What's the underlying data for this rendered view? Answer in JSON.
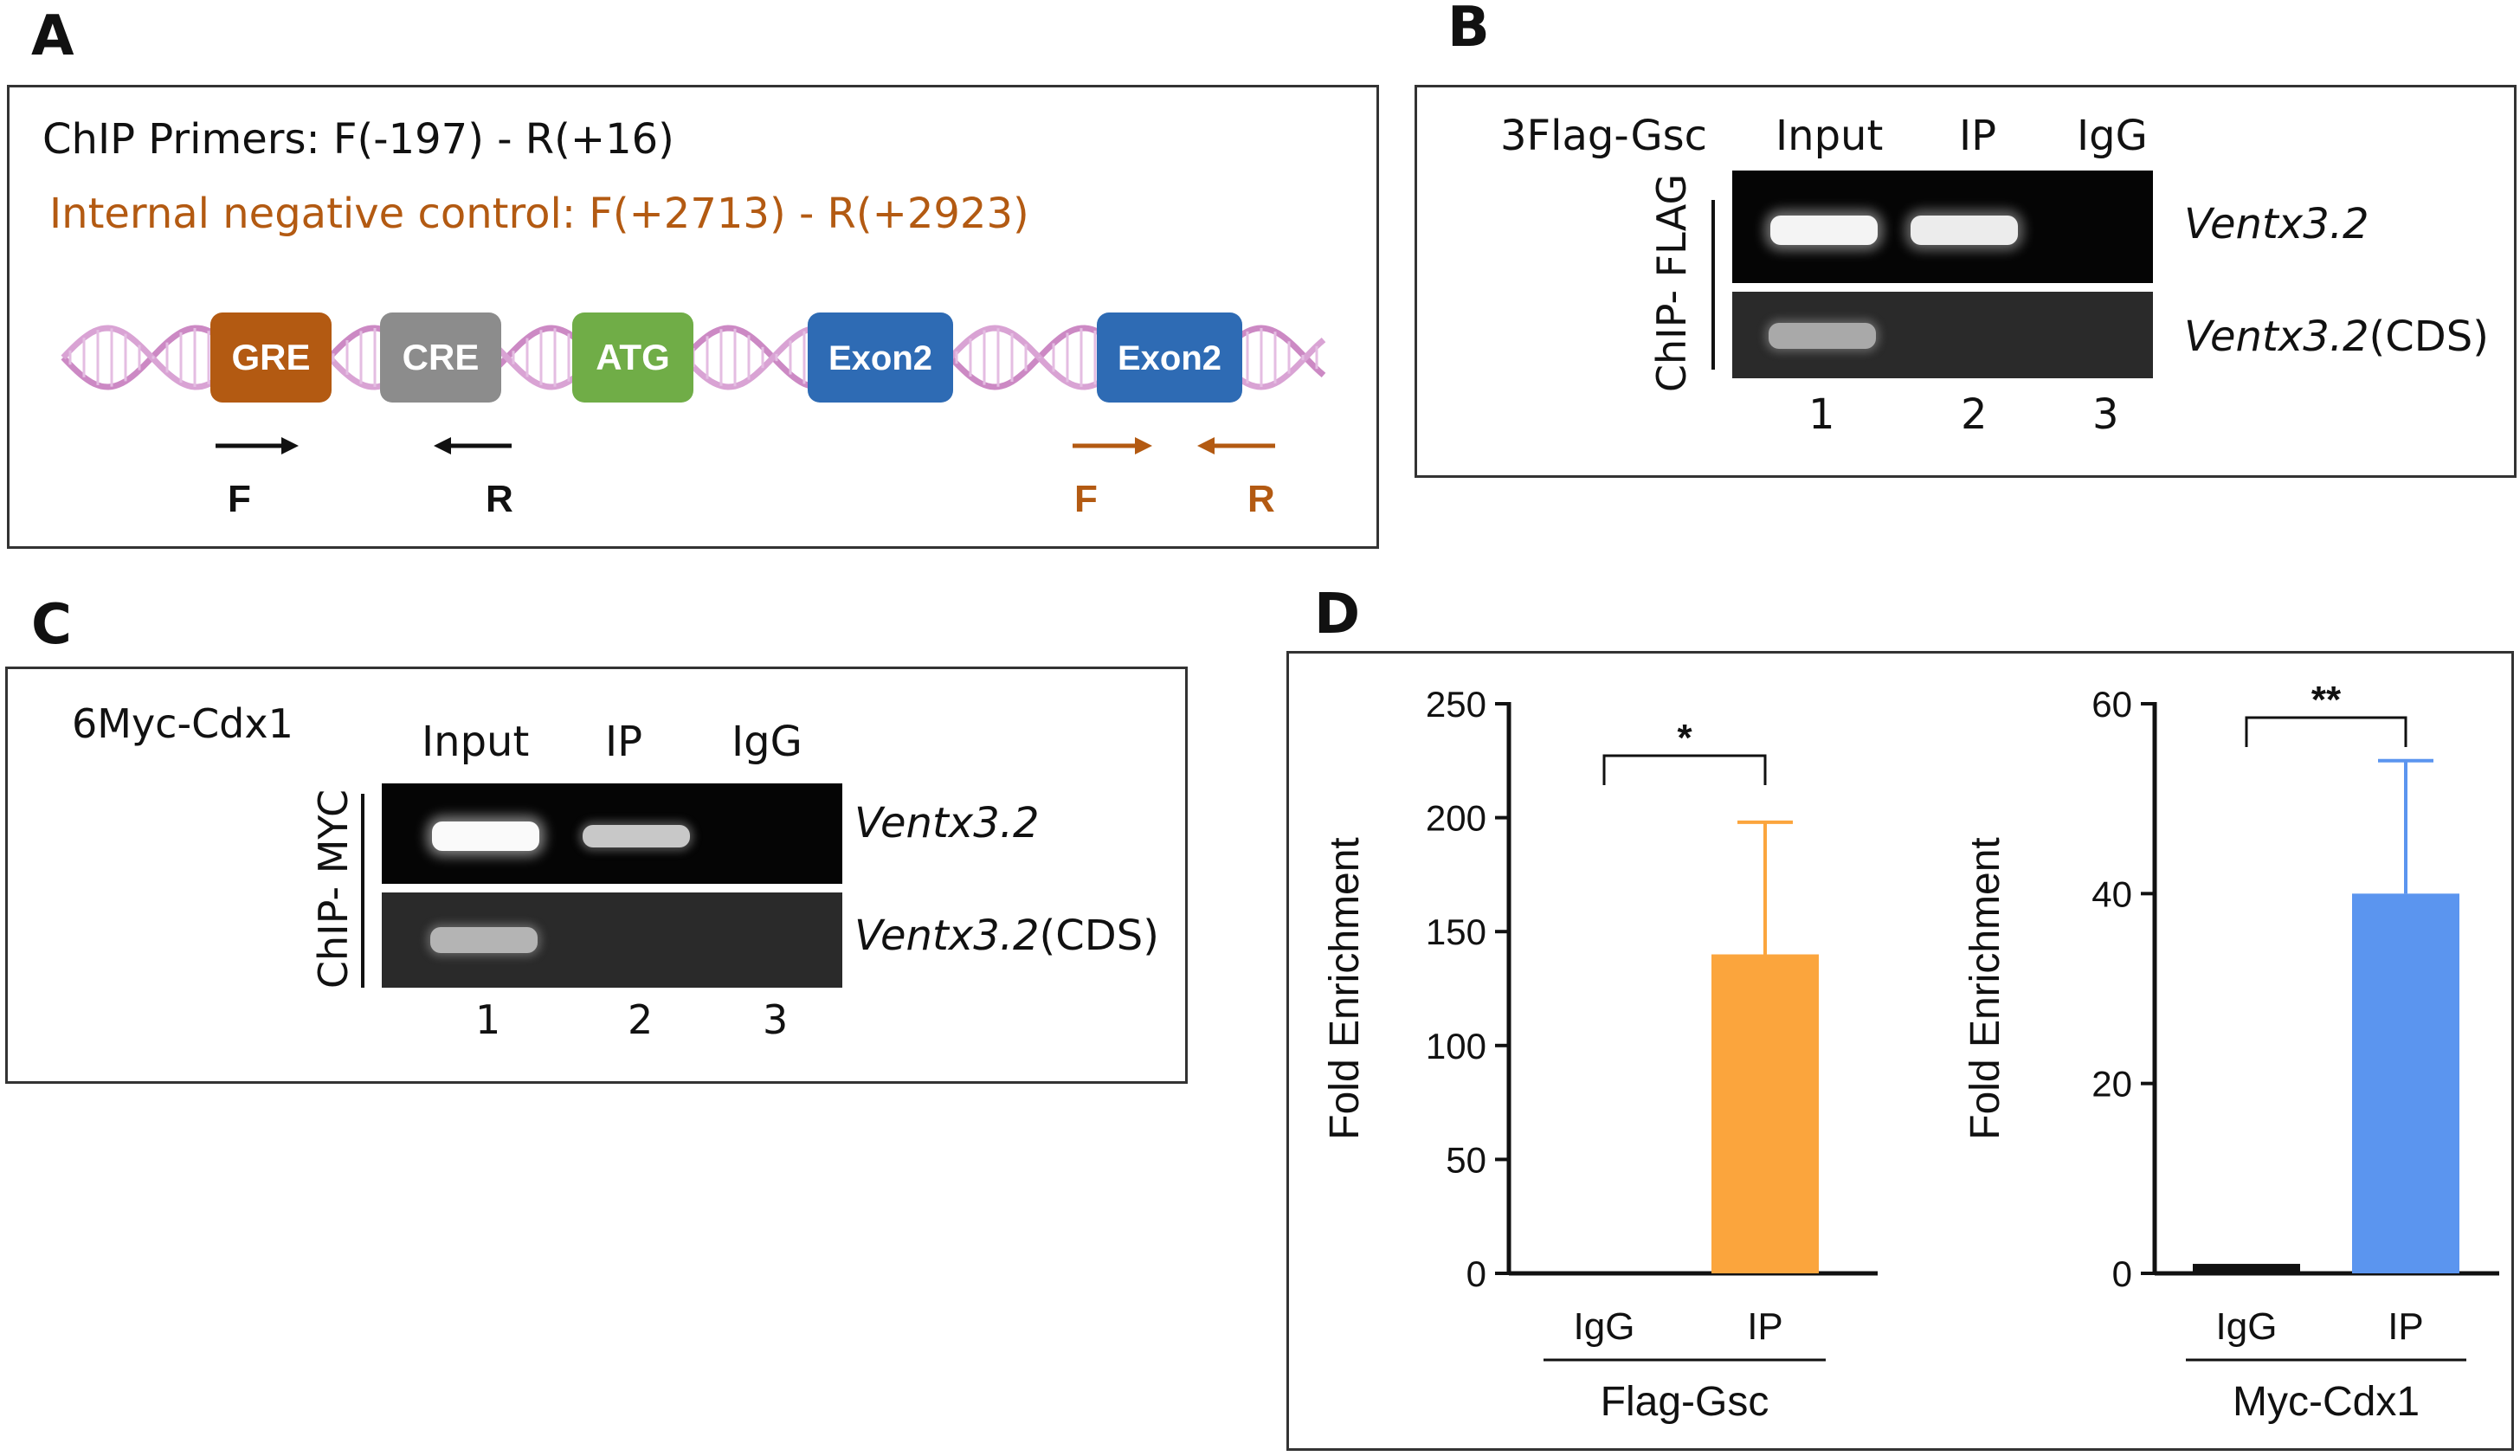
{
  "panel_labels": {
    "a": "A",
    "b": "B",
    "c": "C",
    "d": "D"
  },
  "panel_a": {
    "primers_text": "ChIP Primers: F(-197) - R(+16)",
    "control_text": "Internal negative control: F(+2713) - R(+2923)",
    "elements": [
      {
        "label": "GRE",
        "color": "#b35a12"
      },
      {
        "label": "CRE",
        "color": "#8c8c8c"
      },
      {
        "label": "ATG",
        "color": "#70ad47"
      },
      {
        "label": "Exon2",
        "color": "#2e6bb4"
      },
      {
        "label": "Exon2",
        "color": "#2e6bb4"
      }
    ],
    "arrow_labels": {
      "f1": "F",
      "r1": "R",
      "f2": "F",
      "r2": "R"
    },
    "colors": {
      "primer": "#111111",
      "control": "#b35a12",
      "dna": "#c97dc0"
    }
  },
  "panel_b": {
    "construct": "3Flag-Gsc",
    "lanes": [
      "Input",
      "IP",
      "IgG"
    ],
    "side_label": "ChIP- FLAG",
    "rows": [
      {
        "gene": "Ventx3.2",
        "suffix": ""
      },
      {
        "gene": "Ventx3.2",
        "suffix": "(CDS)"
      }
    ],
    "lane_numbers": [
      "1",
      "2",
      "3"
    ]
  },
  "panel_c": {
    "construct": "6Myc-Cdx1",
    "lanes": [
      "Input",
      "IP",
      "IgG"
    ],
    "side_label": "ChIP- MYC",
    "rows": [
      {
        "gene": "Ventx3.2",
        "suffix": ""
      },
      {
        "gene": "Ventx3.2",
        "suffix": "(CDS)"
      }
    ],
    "lane_numbers": [
      "1",
      "2",
      "3"
    ]
  },
  "chart_data": [
    {
      "type": "bar",
      "categories": [
        "IgG",
        "IP"
      ],
      "values": [
        0,
        140
      ],
      "errors": [
        0,
        58
      ],
      "group_label": "Flag-Gsc",
      "ylabel": "Fold Enrichment",
      "ylim": [
        0,
        250
      ],
      "yticks": [
        0,
        50,
        100,
        150,
        200,
        250
      ],
      "significance": "*",
      "bar_color": "#fba53d"
    },
    {
      "type": "bar",
      "categories": [
        "IgG",
        "IP"
      ],
      "values": [
        1,
        40
      ],
      "errors": [
        0,
        14
      ],
      "group_label": "Myc-Cdx1",
      "ylabel": "Fold Enrichment",
      "ylim": [
        0,
        60
      ],
      "yticks": [
        0,
        20,
        40,
        60
      ],
      "significance": "**",
      "bar_color": "#5b95ef"
    }
  ]
}
